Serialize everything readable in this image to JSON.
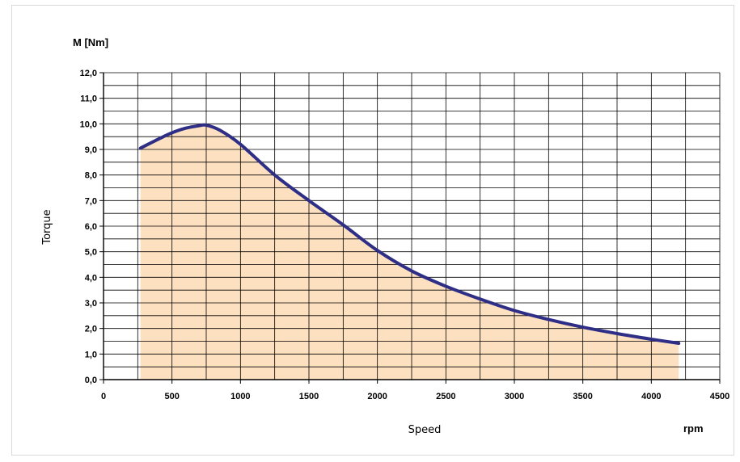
{
  "chart_data": {
    "type": "area",
    "title": "",
    "y_unit_label": "M [Nm]",
    "xlabel": "Speed",
    "x_unit_label": "rpm",
    "ylabel": "Torque",
    "xlim": [
      0,
      4500
    ],
    "ylim": [
      0,
      12
    ],
    "x_ticks": [
      "0",
      "500",
      "1000",
      "1500",
      "2000",
      "2500",
      "3000",
      "3500",
      "4000",
      "4500"
    ],
    "y_ticks": [
      "0,0",
      "1,0",
      "2,0",
      "3,0",
      "4,0",
      "5,0",
      "6,0",
      "7,0",
      "8,0",
      "9,0",
      "10,0",
      "11,0",
      "12,0"
    ],
    "grid": true,
    "line_color": "#2e2e86",
    "fill_color": "#fde0bf",
    "series": [
      {
        "points": [
          {
            "x": 270,
            "y": 9.05
          },
          {
            "x": 400,
            "y": 9.4
          },
          {
            "x": 500,
            "y": 9.65
          },
          {
            "x": 600,
            "y": 9.83
          },
          {
            "x": 700,
            "y": 9.93
          },
          {
            "x": 750,
            "y": 9.95
          },
          {
            "x": 850,
            "y": 9.75
          },
          {
            "x": 1000,
            "y": 9.2
          },
          {
            "x": 1250,
            "y": 8.0
          },
          {
            "x": 1500,
            "y": 7.0
          },
          {
            "x": 1750,
            "y": 6.05
          },
          {
            "x": 2000,
            "y": 5.05
          },
          {
            "x": 2250,
            "y": 4.25
          },
          {
            "x": 2500,
            "y": 3.65
          },
          {
            "x": 2750,
            "y": 3.15
          },
          {
            "x": 3000,
            "y": 2.7
          },
          {
            "x": 3250,
            "y": 2.35
          },
          {
            "x": 3500,
            "y": 2.05
          },
          {
            "x": 3750,
            "y": 1.8
          },
          {
            "x": 4000,
            "y": 1.58
          },
          {
            "x": 4200,
            "y": 1.42
          }
        ]
      }
    ]
  }
}
